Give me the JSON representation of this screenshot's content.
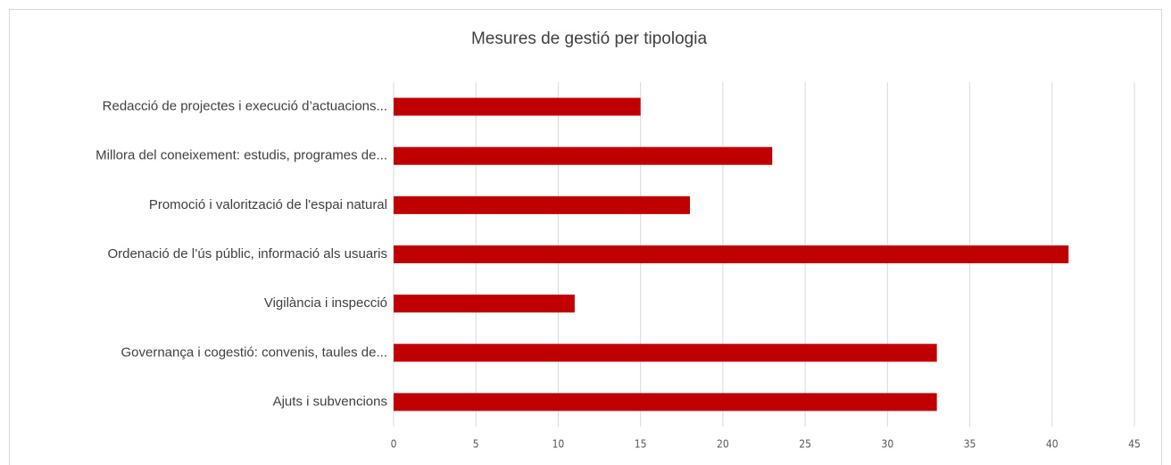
{
  "chart_data": {
    "type": "bar",
    "orientation": "horizontal",
    "title": "Mesures de gestió per tipologia",
    "categories": [
      "Redacció de projectes i execució d’actuacions...",
      "Millora del coneixement: estudis, programes de...",
      "Promoció i valorització de l'espai natural",
      "Ordenació de l’ús públic, informació als usuaris",
      "Vigilància i inspecció",
      "Governança i cogestió: convenis, taules de...",
      "Ajuts i subvencions"
    ],
    "values": [
      15,
      23,
      18,
      41,
      11,
      33,
      33
    ],
    "color": "#c00000",
    "xlim": [
      0,
      45
    ],
    "xticks": [
      0,
      5,
      10,
      15,
      20,
      25,
      30,
      35,
      40,
      45
    ],
    "grid": true
  }
}
